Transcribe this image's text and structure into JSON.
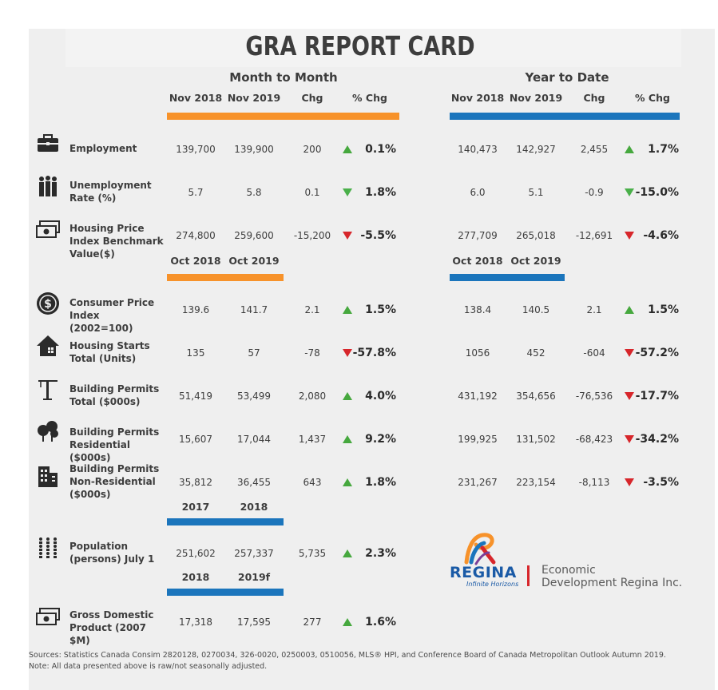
{
  "title": "GRA REPORT CARD",
  "sections": {
    "month": "Month to Month",
    "ytd": "Year to Date"
  },
  "headers": {
    "mtm": [
      "Nov 2018",
      "Nov 2019",
      "Chg",
      "% Chg"
    ],
    "ytd": [
      "Nov 2018",
      "Nov 2019",
      "Chg",
      "% Chg"
    ],
    "oct_mtm": [
      "Oct 2018",
      "Oct 2019"
    ],
    "oct_ytd": [
      "Oct 2018",
      "Oct 2019"
    ],
    "pop": [
      "2017",
      "2018"
    ],
    "gdp": [
      "2018",
      "2019f"
    ]
  },
  "rows": [
    {
      "label": "Employment",
      "m": [
        "139,700",
        "139,900",
        "200"
      ],
      "mp": "0.1%",
      "mdir": "up",
      "y": [
        "140,473",
        "142,927",
        "2,455"
      ],
      "yp": "1.7%",
      "ydir": "up",
      "icon": "briefcase-icon"
    },
    {
      "label": "Unemployment Rate (%)",
      "m": [
        "5.7",
        "5.8",
        "0.1"
      ],
      "mp": "1.8%",
      "mdir": "down-green",
      "y": [
        "6.0",
        "5.1",
        "-0.9"
      ],
      "yp": "-15.0%",
      "ydir": "down-green",
      "icon": "people-icon"
    },
    {
      "label": "Housing Price Index Benchmark Value($)",
      "m": [
        "274,800",
        "259,600",
        "-15,200"
      ],
      "mp": "-5.5%",
      "mdir": "down-red",
      "y": [
        "277,709",
        "265,018",
        "-12,691"
      ],
      "yp": "-4.6%",
      "ydir": "down-red",
      "icon": "cash-icon"
    },
    {
      "label": "Consumer Price Index (2002=100)",
      "m": [
        "139.6",
        "141.7",
        "2.1"
      ],
      "mp": "1.5%",
      "mdir": "up",
      "y": [
        "138.4",
        "140.5",
        "2.1"
      ],
      "yp": "1.5%",
      "ydir": "up",
      "icon": "dollar-coin-icon"
    },
    {
      "label": "Housing Starts Total (Units)",
      "m": [
        "135",
        "57",
        "-78"
      ],
      "mp": "-57.8%",
      "mdir": "down-red",
      "y": [
        "1056",
        "452",
        "-604"
      ],
      "yp": "-57.2%",
      "ydir": "down-red",
      "icon": "house-icon"
    },
    {
      "label": "Building Permits Total ($000s)",
      "m": [
        "51,419",
        "53,499",
        "2,080"
      ],
      "mp": "4.0%",
      "mdir": "up",
      "y": [
        "431,192",
        "354,656",
        "-76,536"
      ],
      "yp": "-17.7%",
      "ydir": "down-red",
      "icon": "crane-icon"
    },
    {
      "label": "Building Permits Residential ($000s)",
      "m": [
        "15,607",
        "17,044",
        "1,437"
      ],
      "mp": "9.2%",
      "mdir": "up",
      "y": [
        "199,925",
        "131,502",
        "-68,423"
      ],
      "yp": "-34.2%",
      "ydir": "down-red",
      "icon": "trees-icon"
    },
    {
      "label": "Building Permits Non-Residential ($000s)",
      "m": [
        "35,812",
        "36,455",
        "643"
      ],
      "mp": "1.8%",
      "mdir": "up",
      "y": [
        "231,267",
        "223,154",
        "-8,113"
      ],
      "yp": "-3.5%",
      "ydir": "down-red",
      "icon": "office-building-icon"
    },
    {
      "label": "Population (persons) July 1",
      "m": [
        "251,602",
        "257,337",
        "5,735"
      ],
      "mp": "2.3%",
      "mdir": "up",
      "icon": "population-icon"
    },
    {
      "label": "Gross Domestic Product (2007 $M)",
      "m": [
        "17,318",
        "17,595",
        "277"
      ],
      "mp": "1.6%",
      "mdir": "up",
      "icon": "cash-icon"
    }
  ],
  "logo": {
    "word": "REGINA",
    "tagline": "Infinite Horizons",
    "org_line1": "Economic",
    "org_line2": "Development Regina Inc."
  },
  "footer": {
    "sources": "Sources: Statistics Canada Consim 2820128, 0270034, 326-0020, 0250003, 0510056, MLS® HPI, and Conference Board of Canada Metropolitan Outlook Autumn 2019.",
    "note": "Note: All data presented above is raw/not seasonally adjusted."
  },
  "colors": {
    "orange": "#f7922a",
    "blue": "#1b75bc",
    "up": "#46a83e",
    "down_good": "#4ab04a",
    "down_bad": "#d7262b"
  }
}
